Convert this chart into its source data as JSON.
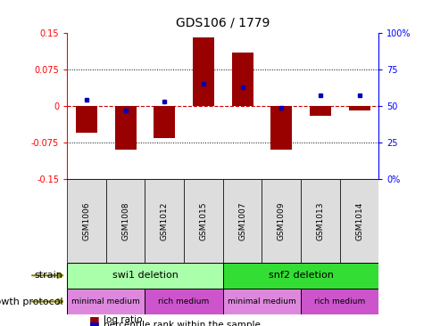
{
  "title": "GDS106 / 1779",
  "samples": [
    "GSM1006",
    "GSM1008",
    "GSM1012",
    "GSM1015",
    "GSM1007",
    "GSM1009",
    "GSM1013",
    "GSM1014"
  ],
  "log_ratio": [
    -0.055,
    -0.09,
    -0.065,
    0.14,
    0.11,
    -0.09,
    -0.02,
    -0.01
  ],
  "percentile_rank": [
    54,
    47,
    53,
    65,
    63,
    49,
    57,
    57
  ],
  "ylim_left": [
    -0.15,
    0.15
  ],
  "yticks_left": [
    -0.15,
    -0.075,
    0,
    0.075,
    0.15
  ],
  "ytick_labels_left": [
    "-0.15",
    "-0.075",
    "0",
    "0.075",
    "0.15"
  ],
  "ylim_right": [
    0,
    100
  ],
  "yticks_right": [
    0,
    25,
    50,
    75,
    100
  ],
  "ytick_labels_right": [
    "0%",
    "25",
    "50",
    "75",
    "100%"
  ],
  "bar_color": "#990000",
  "dot_color": "#0000bb",
  "zero_line_color": "#cc0000",
  "strain_groups": [
    {
      "label": "swi1 deletion",
      "start": 0,
      "end": 4,
      "color": "#aaffaa"
    },
    {
      "label": "snf2 deletion",
      "start": 4,
      "end": 8,
      "color": "#33dd33"
    }
  ],
  "growth_groups": [
    {
      "label": "minimal medium",
      "start": 0,
      "end": 2,
      "color": "#dd88dd"
    },
    {
      "label": "rich medium",
      "start": 2,
      "end": 4,
      "color": "#cc55cc"
    },
    {
      "label": "minimal medium",
      "start": 4,
      "end": 6,
      "color": "#dd88dd"
    },
    {
      "label": "rich medium",
      "start": 6,
      "end": 8,
      "color": "#cc55cc"
    }
  ],
  "legend_label_ratio": "log ratio",
  "legend_label_pct": "percentile rank within the sample",
  "strain_label": "strain",
  "growth_label": "growth protocol",
  "bar_width": 0.55
}
